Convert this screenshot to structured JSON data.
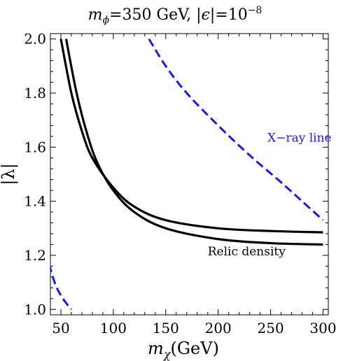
{
  "chart_data": {
    "type": "line",
    "title": {
      "m": "m",
      "m_sub": "ϕ",
      "mid": "=350 GeV, |",
      "eps": "ϵ",
      "rest": "|=10",
      "exp": "−8"
    },
    "xlabel": {
      "main": "m",
      "sub": "χ",
      "unit": "(GeV)"
    },
    "ylabel": "|λ|",
    "xlim": [
      40,
      305
    ],
    "ylim": [
      0.98,
      2.02
    ],
    "xticks": [
      50,
      100,
      150,
      200,
      250,
      300
    ],
    "yticks": [
      1.0,
      1.2,
      1.4,
      1.6,
      1.8,
      2.0
    ],
    "ytick_labels": [
      "1.0",
      "1.2",
      "1.4",
      "1.6",
      "1.8",
      "2.0"
    ],
    "grid": false,
    "series": [
      {
        "name": "X-ray line",
        "color": "#1a1adb",
        "dash": true,
        "points": [
          [
            13,
            2.0
          ],
          [
            18,
            1.8
          ],
          [
            23,
            1.6
          ],
          [
            29,
            1.4
          ],
          [
            36,
            1.22
          ],
          [
            44,
            1.1
          ],
          [
            52,
            1.04
          ],
          [
            60,
            1.0
          ]
        ]
      },
      {
        "color": "#1a1adb",
        "dash": true,
        "points": [
          [
            134,
            2.0
          ],
          [
            150,
            1.9
          ],
          [
            170,
            1.8
          ],
          [
            200,
            1.68
          ],
          [
            230,
            1.57
          ],
          [
            260,
            1.47
          ],
          [
            280,
            1.4
          ],
          [
            300,
            1.33
          ]
        ]
      },
      {
        "color": "#000000",
        "dash": false,
        "points": [
          [
            50,
            2.0
          ],
          [
            60,
            1.8
          ],
          [
            70,
            1.66
          ],
          [
            80,
            1.56
          ],
          [
            100,
            1.45
          ],
          [
            120,
            1.38
          ],
          [
            150,
            1.33
          ],
          [
            200,
            1.3
          ],
          [
            250,
            1.29
          ],
          [
            300,
            1.285
          ]
        ]
      },
      {
        "name": "Relic density",
        "color": "#000000",
        "dash": false,
        "points": [
          [
            55,
            2.0
          ],
          [
            65,
            1.8
          ],
          [
            75,
            1.65
          ],
          [
            85,
            1.54
          ],
          [
            100,
            1.44
          ],
          [
            120,
            1.36
          ],
          [
            150,
            1.3
          ],
          [
            200,
            1.26
          ],
          [
            250,
            1.245
          ],
          [
            300,
            1.24
          ]
        ]
      }
    ],
    "annotations": [
      {
        "text": "X−ray line",
        "x": 247,
        "y": 1.62,
        "color": "#1a1adb"
      },
      {
        "text": "Relic density",
        "x": 190,
        "y": 1.2,
        "color": "#000000"
      }
    ]
  }
}
